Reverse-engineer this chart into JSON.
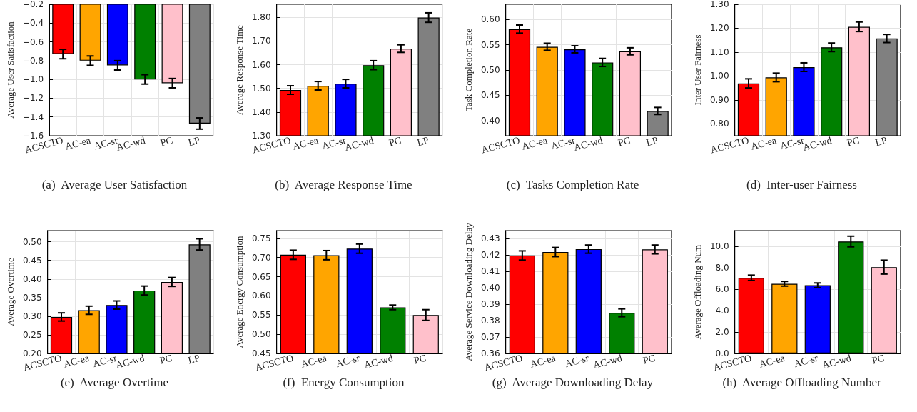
{
  "chart_data": [
    {
      "type": "bar",
      "title": "(a)  Average User Satisfaction",
      "ylabel": "Average User Satisfaction",
      "categories": [
        "ACSCTO",
        "AC-ea",
        "AC-sr",
        "AC-wd",
        "PC",
        "LP"
      ],
      "values": [
        -0.73,
        -0.8,
        -0.85,
        -1.0,
        -1.04,
        -1.47
      ],
      "errors": [
        0.05,
        0.05,
        0.05,
        0.05,
        0.05,
        0.06
      ],
      "colors": [
        "#ff0000",
        "#ffa500",
        "#0000ff",
        "#008000",
        "#ffc0cb",
        "#808080"
      ],
      "ylim": [
        -1.6,
        -0.2
      ],
      "yticks": [
        {
          "value": -1.6,
          "label": "−1.6"
        },
        {
          "value": -1.4,
          "label": "−1.4"
        },
        {
          "value": -1.2,
          "label": "−1.2"
        },
        {
          "value": -1.0,
          "label": "−1.0"
        },
        {
          "value": -0.8,
          "label": "−0.8"
        },
        {
          "value": -0.6,
          "label": "−0.6"
        },
        {
          "value": -0.4,
          "label": "−0.4"
        },
        {
          "value": -0.2,
          "label": "−0.2"
        }
      ],
      "grid": true
    },
    {
      "type": "bar",
      "title": "(b)  Average Response Time",
      "ylabel": "Average Response Time",
      "categories": [
        "ACSCTO",
        "AC-ea",
        "AC-sr",
        "AC-wd",
        "PC",
        "LP"
      ],
      "values": [
        1.493,
        1.511,
        1.52,
        1.598,
        1.668,
        1.799
      ],
      "errors": [
        0.018,
        0.018,
        0.018,
        0.019,
        0.016,
        0.02
      ],
      "colors": [
        "#ff0000",
        "#ffa500",
        "#0000ff",
        "#008000",
        "#ffc0cb",
        "#808080"
      ],
      "ylim": [
        1.3,
        1.855
      ],
      "yticks": [
        {
          "value": 1.3,
          "label": "1.30"
        },
        {
          "value": 1.4,
          "label": "1.40"
        },
        {
          "value": 1.5,
          "label": "1.50"
        },
        {
          "value": 1.6,
          "label": "1.60"
        },
        {
          "value": 1.7,
          "label": "1.70"
        },
        {
          "value": 1.8,
          "label": "1.80"
        }
      ],
      "grid": true
    },
    {
      "type": "bar",
      "title": "(c)  Tasks Completion Rate",
      "ylabel": "Task Completion Rate",
      "categories": [
        "ACSCTO",
        "AC-ea",
        "AC-sr",
        "AC-wd",
        "PC",
        "LP"
      ],
      "values": [
        0.581,
        0.546,
        0.541,
        0.515,
        0.537,
        0.419
      ],
      "errors": [
        0.008,
        0.007,
        0.007,
        0.008,
        0.007,
        0.007
      ],
      "colors": [
        "#ff0000",
        "#ffa500",
        "#0000ff",
        "#008000",
        "#ffc0cb",
        "#808080"
      ],
      "ylim": [
        0.37,
        0.63
      ],
      "yticks": [
        {
          "value": 0.4,
          "label": "0.40"
        },
        {
          "value": 0.45,
          "label": "0.45"
        },
        {
          "value": 0.5,
          "label": "0.50"
        },
        {
          "value": 0.55,
          "label": "0.55"
        },
        {
          "value": 0.6,
          "label": "0.60"
        }
      ],
      "grid": true
    },
    {
      "type": "bar",
      "title": "(d)  Inter-user Fairness",
      "ylabel": "Inter User Fairness",
      "categories": [
        "ACSCTO",
        "AC-ea",
        "AC-sr",
        "AC-wd",
        "PC",
        "LP"
      ],
      "values": [
        0.969,
        0.994,
        1.037,
        1.12,
        1.206,
        1.157
      ],
      "errors": [
        0.019,
        0.018,
        0.018,
        0.018,
        0.02,
        0.017
      ],
      "colors": [
        "#ff0000",
        "#ffa500",
        "#0000ff",
        "#008000",
        "#ffc0cb",
        "#808080"
      ],
      "ylim": [
        0.75,
        1.3
      ],
      "yticks": [
        {
          "value": 0.8,
          "label": "0.80"
        },
        {
          "value": 0.9,
          "label": "0.90"
        },
        {
          "value": 1.0,
          "label": "1.00"
        },
        {
          "value": 1.1,
          "label": "1.10"
        },
        {
          "value": 1.2,
          "label": "1.20"
        },
        {
          "value": 1.3,
          "label": "1.30"
        }
      ],
      "grid": true
    },
    {
      "type": "bar",
      "title": "(e)  Average Overtime",
      "ylabel": "Average Overtime",
      "categories": [
        "ACSCTO",
        "AC-ea",
        "AC-sr",
        "AC-wd",
        "PC",
        "LP"
      ],
      "values": [
        0.298,
        0.316,
        0.33,
        0.369,
        0.392,
        0.493
      ],
      "errors": [
        0.011,
        0.011,
        0.011,
        0.012,
        0.012,
        0.015
      ],
      "colors": [
        "#ff0000",
        "#ffa500",
        "#0000ff",
        "#008000",
        "#ffc0cb",
        "#808080"
      ],
      "ylim": [
        0.2,
        0.53
      ],
      "yticks": [
        {
          "value": 0.2,
          "label": "0.20"
        },
        {
          "value": 0.25,
          "label": "0.25"
        },
        {
          "value": 0.3,
          "label": "0.30"
        },
        {
          "value": 0.35,
          "label": "0.35"
        },
        {
          "value": 0.4,
          "label": "0.40"
        },
        {
          "value": 0.45,
          "label": "0.45"
        },
        {
          "value": 0.5,
          "label": "0.50"
        }
      ],
      "grid": true
    },
    {
      "type": "bar",
      "title": "(f)  Energy Consumption",
      "ylabel": "Average Energy Consumption",
      "categories": [
        "ACSCTO",
        "AC-ea",
        "AC-sr",
        "AC-wd",
        "PC"
      ],
      "values": [
        0.707,
        0.706,
        0.723,
        0.57,
        0.55
      ],
      "errors": [
        0.012,
        0.012,
        0.012,
        0.006,
        0.014
      ],
      "colors": [
        "#ff0000",
        "#ffa500",
        "#0000ff",
        "#008000",
        "#ffc0cb"
      ],
      "ylim": [
        0.45,
        0.77
      ],
      "yticks": [
        {
          "value": 0.45,
          "label": "0.45"
        },
        {
          "value": 0.5,
          "label": "0.50"
        },
        {
          "value": 0.55,
          "label": "0.55"
        },
        {
          "value": 0.6,
          "label": "0.60"
        },
        {
          "value": 0.65,
          "label": "0.65"
        },
        {
          "value": 0.7,
          "label": "0.70"
        },
        {
          "value": 0.75,
          "label": "0.75"
        }
      ],
      "grid": true
    },
    {
      "type": "bar",
      "title": "(g)  Average Downloading Delay",
      "ylabel": "Average Service Downloading Delay",
      "categories": [
        "ACSCTO",
        "AC-ea",
        "AC-sr",
        "AC-wd",
        "PC"
      ],
      "values": [
        0.4198,
        0.4219,
        0.4237,
        0.3848,
        0.4235
      ],
      "errors": [
        0.0028,
        0.0028,
        0.0025,
        0.0024,
        0.0027
      ],
      "colors": [
        "#ff0000",
        "#ffa500",
        "#0000ff",
        "#008000",
        "#ffc0cb"
      ],
      "ylim": [
        0.36,
        0.435
      ],
      "yticks": [
        {
          "value": 0.36,
          "label": "0.36"
        },
        {
          "value": 0.37,
          "label": "0.37"
        },
        {
          "value": 0.38,
          "label": "0.38"
        },
        {
          "value": 0.39,
          "label": "0.39"
        },
        {
          "value": 0.4,
          "label": "0.40"
        },
        {
          "value": 0.41,
          "label": "0.41"
        },
        {
          "value": 0.42,
          "label": "0.42"
        },
        {
          "value": 0.43,
          "label": "0.43"
        }
      ],
      "grid": true
    },
    {
      "type": "bar",
      "title": "(h)  Average Offloading Number",
      "ylabel": "Average Offloading Num",
      "categories": [
        "ACSCTO",
        "AC-ea",
        "AC-sr",
        "AC-wd",
        "PC"
      ],
      "values": [
        7.08,
        6.52,
        6.38,
        10.48,
        8.08
      ],
      "errors": [
        0.25,
        0.22,
        0.22,
        0.5,
        0.65
      ],
      "colors": [
        "#ff0000",
        "#ffa500",
        "#0000ff",
        "#008000",
        "#ffc0cb"
      ],
      "ylim": [
        0,
        11.5
      ],
      "yticks": [
        {
          "value": 0,
          "label": "0.0"
        },
        {
          "value": 2,
          "label": "2.0"
        },
        {
          "value": 4,
          "label": "4.0"
        },
        {
          "value": 6,
          "label": "6.0"
        },
        {
          "value": 8,
          "label": "8.0"
        },
        {
          "value": 10,
          "label": "10.0"
        }
      ],
      "grid": true
    }
  ]
}
